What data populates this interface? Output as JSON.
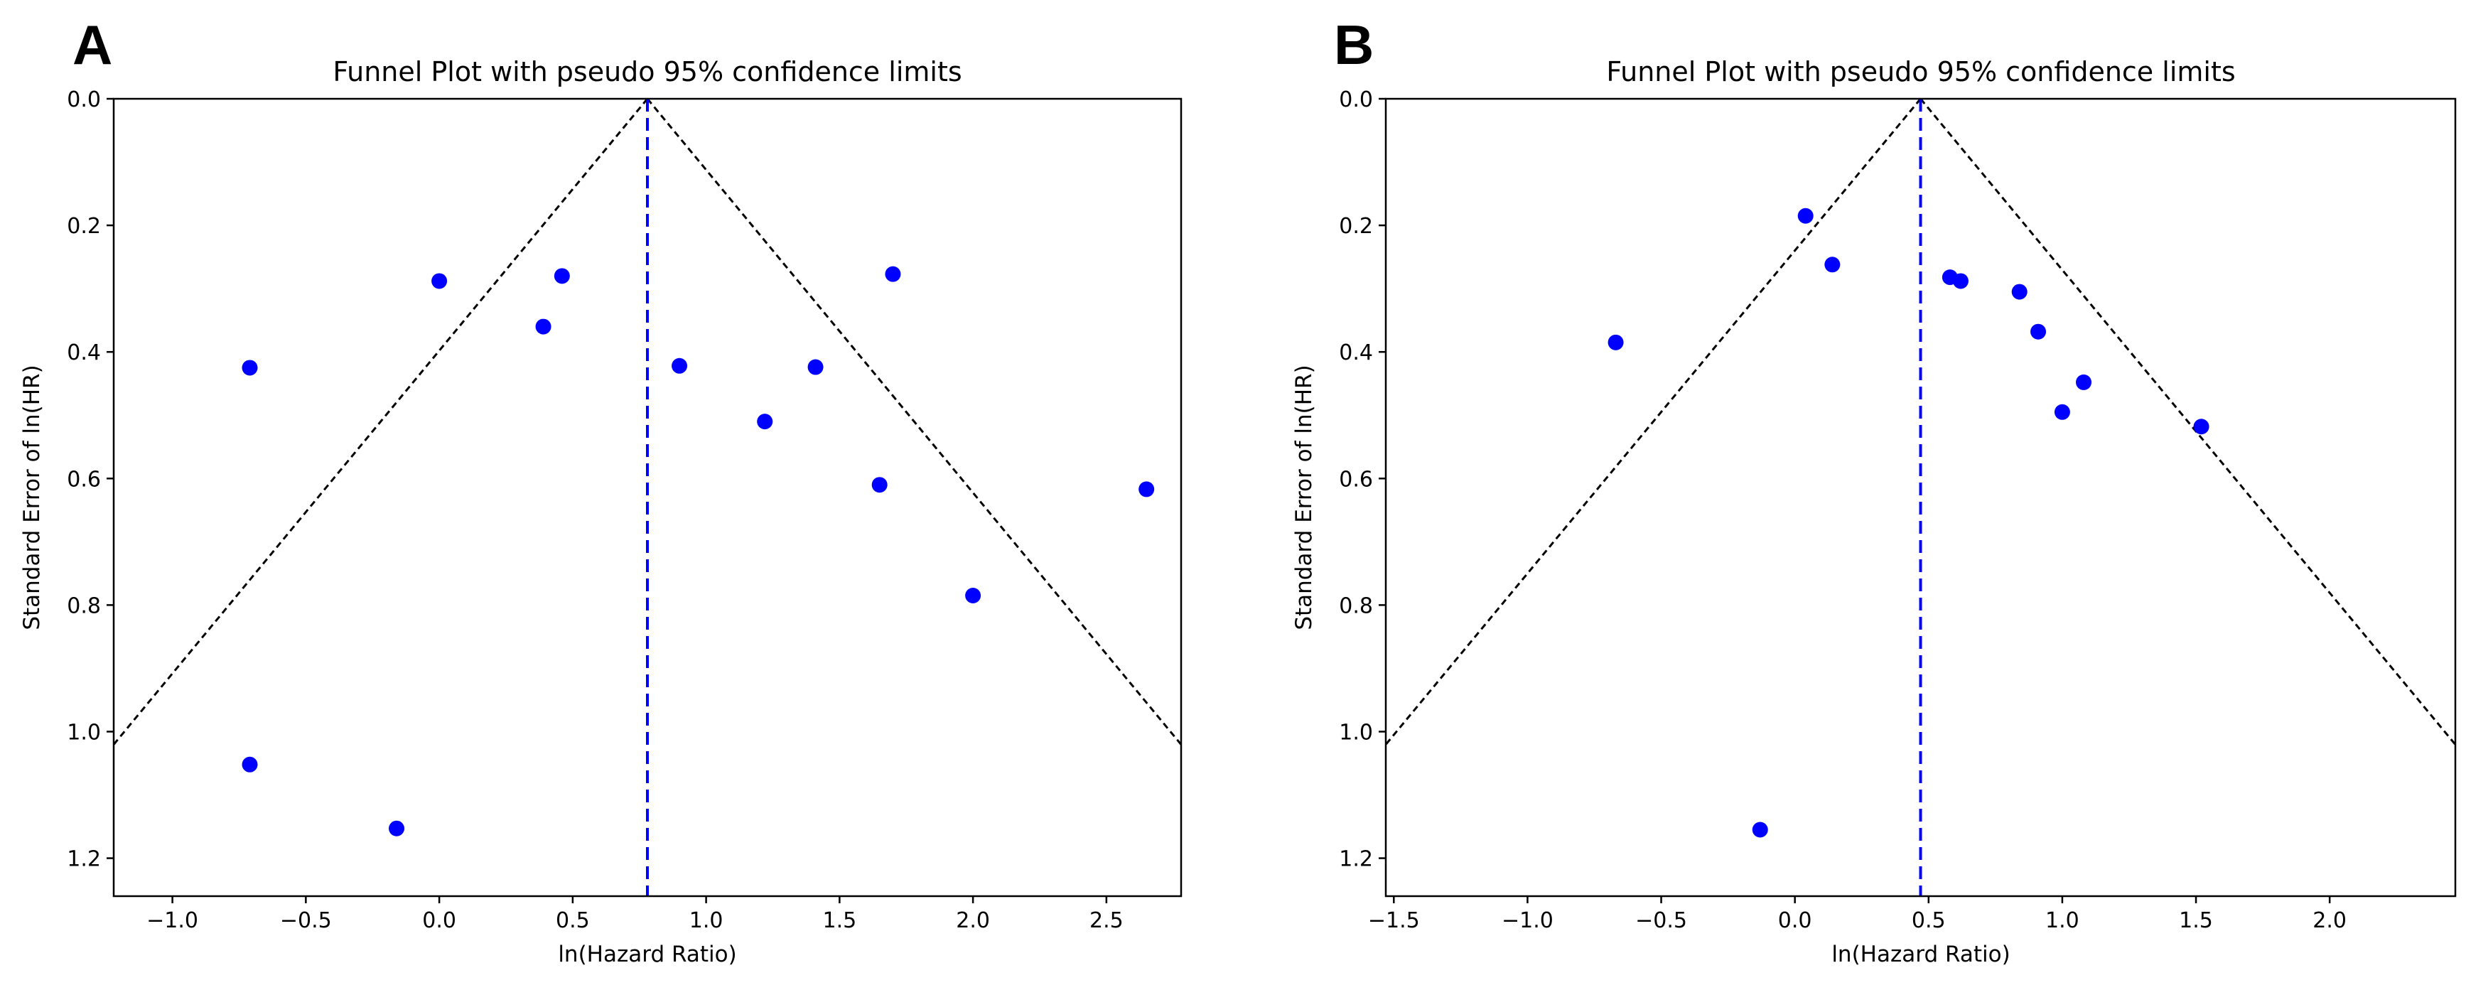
{
  "chart_data": [
    {
      "panel_label": "A",
      "type": "scatter",
      "title": "Funnel Plot with pseudo 95% confidence limits",
      "xlabel": "ln(Hazard Ratio)",
      "ylabel": "Standard Error of ln(HR)",
      "xlim": [
        -1.22,
        2.78
      ],
      "ylim": [
        1.26,
        0.0
      ],
      "y_inverted": true,
      "xticks": [
        -1.0,
        -0.5,
        0.0,
        0.5,
        1.0,
        1.5,
        2.0,
        2.5
      ],
      "xtick_labels": [
        "−1.0",
        "−0.5",
        "0.0",
        "0.5",
        "1.0",
        "1.5",
        "2.0",
        "2.5"
      ],
      "yticks": [
        0.0,
        0.2,
        0.4,
        0.6,
        0.8,
        1.0,
        1.2
      ],
      "ytick_labels": [
        "0.0",
        "0.2",
        "0.4",
        "0.6",
        "0.8",
        "1.0",
        "1.2"
      ],
      "pooled_estimate": 0.78,
      "confidence_z": 1.96,
      "point_color": "#0000ff",
      "pooled_line_color": "#0000ff",
      "funnel_line_color": "#000000",
      "x": [
        -0.71,
        0.0,
        0.39,
        0.46,
        1.7,
        0.9,
        1.41,
        1.22,
        1.65,
        2.65,
        2.0,
        -0.71,
        -0.16
      ],
      "y": [
        0.425,
        0.288,
        0.36,
        0.28,
        0.277,
        0.422,
        0.424,
        0.51,
        0.61,
        0.617,
        0.785,
        1.052,
        1.153
      ]
    },
    {
      "panel_label": "B",
      "type": "scatter",
      "title": "Funnel Plot with pseudo 95% confidence limits",
      "xlabel": "ln(Hazard Ratio)",
      "ylabel": "Standard Error of ln(HR)",
      "xlim": [
        -1.53,
        2.47
      ],
      "ylim": [
        1.26,
        0.0
      ],
      "y_inverted": true,
      "xticks": [
        -1.5,
        -1.0,
        -0.5,
        0.0,
        0.5,
        1.0,
        1.5,
        2.0
      ],
      "xtick_labels": [
        "−1.5",
        "−1.0",
        "−0.5",
        "0.0",
        "0.5",
        "1.0",
        "1.5",
        "2.0"
      ],
      "yticks": [
        0.0,
        0.2,
        0.4,
        0.6,
        0.8,
        1.0,
        1.2
      ],
      "ytick_labels": [
        "0.0",
        "0.2",
        "0.4",
        "0.6",
        "0.8",
        "1.0",
        "1.2"
      ],
      "pooled_estimate": 0.47,
      "confidence_z": 1.96,
      "point_color": "#0000ff",
      "pooled_line_color": "#0000ff",
      "funnel_line_color": "#000000",
      "x": [
        0.04,
        0.14,
        -0.67,
        0.58,
        0.62,
        0.84,
        0.91,
        1.08,
        1.0,
        1.52,
        -0.13
      ],
      "y": [
        0.185,
        0.262,
        0.385,
        0.282,
        0.288,
        0.305,
        0.368,
        0.448,
        0.495,
        0.518,
        1.155
      ]
    }
  ]
}
